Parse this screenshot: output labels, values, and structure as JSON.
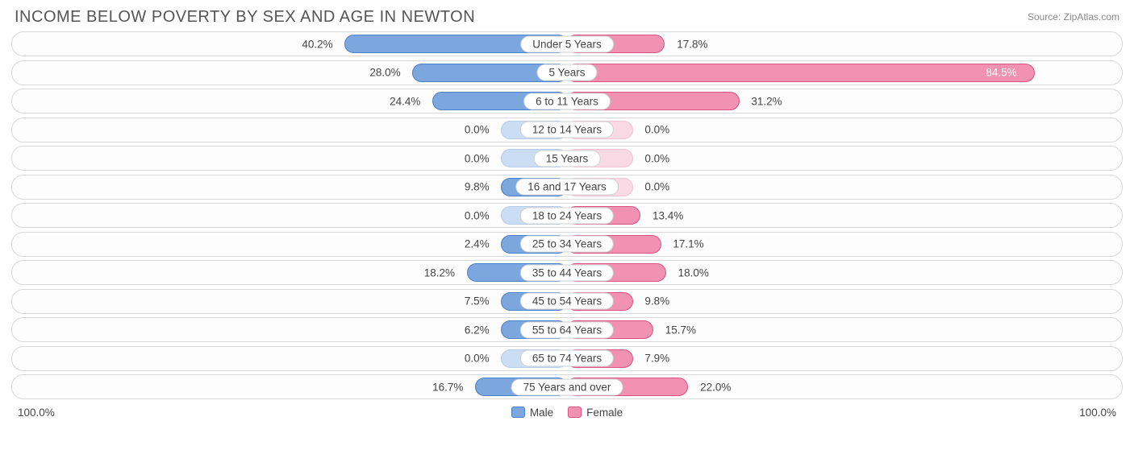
{
  "title": "INCOME BELOW POVERTY BY SEX AND AGE IN NEWTON",
  "source": "Source: ZipAtlas.com",
  "axis_left": "100.0%",
  "axis_right": "100.0%",
  "legend": {
    "male": "Male",
    "female": "Female"
  },
  "colors": {
    "male_fill": "#7ba7de",
    "male_border": "#4a7fc9",
    "male_stub_fill": "#cbddf2",
    "male_stub_border": "#b5cbe8",
    "female_fill": "#f192b2",
    "female_border": "#d9537e",
    "female_stub_fill": "#f8d9e4",
    "female_stub_border": "#f2c3d3",
    "row_border": "#d8d8d8",
    "text": "#444444",
    "title_text": "#555555",
    "source_text": "#888888",
    "bg": "#ffffff"
  },
  "chart": {
    "type": "diverging-bar",
    "max_pct": 100.0,
    "stub_pct": 12.0,
    "label_offset_pct": 2.0,
    "rows": [
      {
        "label": "Under 5 Years",
        "male": 40.2,
        "female": 17.8,
        "male_txt": "40.2%",
        "female_txt": "17.8%"
      },
      {
        "label": "5 Years",
        "male": 28.0,
        "female": 84.5,
        "male_txt": "28.0%",
        "female_txt": "84.5%",
        "female_inside": true
      },
      {
        "label": "6 to 11 Years",
        "male": 24.4,
        "female": 31.2,
        "male_txt": "24.4%",
        "female_txt": "31.2%"
      },
      {
        "label": "12 to 14 Years",
        "male": 0.0,
        "female": 0.0,
        "male_txt": "0.0%",
        "female_txt": "0.0%"
      },
      {
        "label": "15 Years",
        "male": 0.0,
        "female": 0.0,
        "male_txt": "0.0%",
        "female_txt": "0.0%"
      },
      {
        "label": "16 and 17 Years",
        "male": 9.8,
        "female": 0.0,
        "male_txt": "9.8%",
        "female_txt": "0.0%"
      },
      {
        "label": "18 to 24 Years",
        "male": 0.0,
        "female": 13.4,
        "male_txt": "0.0%",
        "female_txt": "13.4%"
      },
      {
        "label": "25 to 34 Years",
        "male": 2.4,
        "female": 17.1,
        "male_txt": "2.4%",
        "female_txt": "17.1%"
      },
      {
        "label": "35 to 44 Years",
        "male": 18.2,
        "female": 18.0,
        "male_txt": "18.2%",
        "female_txt": "18.0%"
      },
      {
        "label": "45 to 54 Years",
        "male": 7.5,
        "female": 9.8,
        "male_txt": "7.5%",
        "female_txt": "9.8%"
      },
      {
        "label": "55 to 64 Years",
        "male": 6.2,
        "female": 15.7,
        "male_txt": "6.2%",
        "female_txt": "15.7%"
      },
      {
        "label": "65 to 74 Years",
        "male": 0.0,
        "female": 7.9,
        "male_txt": "0.0%",
        "female_txt": "7.9%"
      },
      {
        "label": "75 Years and over",
        "male": 16.7,
        "female": 22.0,
        "male_txt": "16.7%",
        "female_txt": "22.0%"
      }
    ]
  }
}
